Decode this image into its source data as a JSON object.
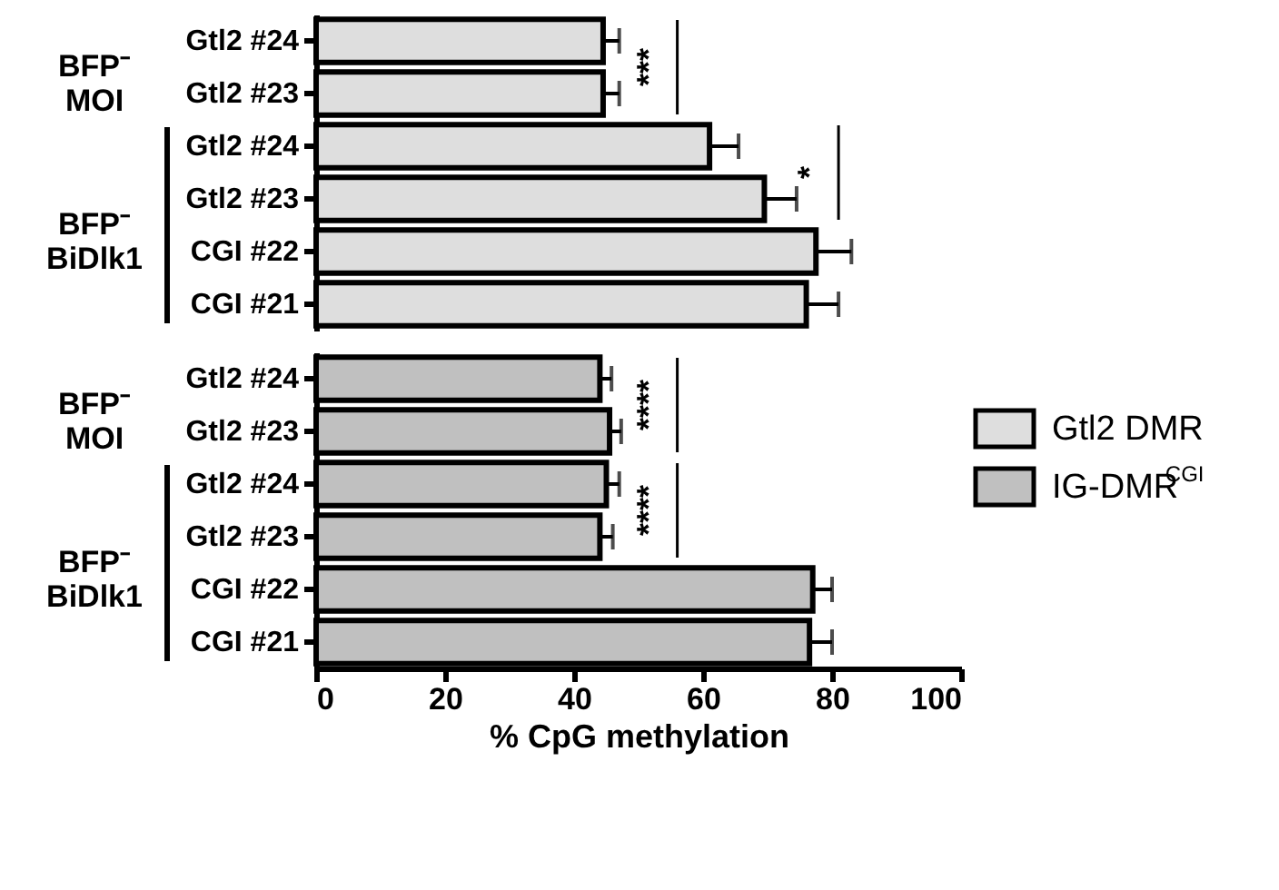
{
  "chart_data": [
    {
      "type": "bar",
      "orientation": "horizontal",
      "categories": [
        "Gtl2 #24",
        "Gtl2 #23",
        "Gtl2 #24",
        "Gtl2 #23",
        "CGI #22",
        "CGI #21"
      ],
      "series": [
        {
          "name": "Gtl2 DMR",
          "color": "#dedede",
          "values": [
            44.5,
            44.5,
            61,
            69.5,
            77.5,
            76
          ],
          "errors": [
            2.5,
            2.5,
            4.5,
            5,
            5.5,
            5
          ]
        }
      ],
      "xlim": [
        0,
        100
      ],
      "tick_labels": "y",
      "legend": "right",
      "annotations": [
        "BFP⁻\nMOI",
        "BFP⁻\nBiDlk1",
        "***",
        "*"
      ]
    },
    {
      "type": "bar",
      "orientation": "horizontal",
      "categories": [
        "Gtl2 #24",
        "Gtl2 #23",
        "Gtl2 #24",
        "Gtl2 #23",
        "CGI #22",
        "CGI #21"
      ],
      "series": [
        {
          "name": "IG-DMR$^{CGI}$",
          "color": "#c0c0c0",
          "values": [
            44,
            45.5,
            45,
            44,
            77,
            76.5
          ],
          "errors": [
            1.8,
            1.8,
            2,
            2,
            3,
            3.5
          ]
        }
      ],
      "xlim": [
        0,
        100
      ],
      "xticks": [
        0,
        20,
        40,
        60,
        80,
        100
      ],
      "xlabel": "% CpG methylation",
      "legend": "right",
      "annotations": [
        "BFP⁻\nMOI",
        "BFP⁻\nBiDlk1",
        "****",
        "****"
      ]
    }
  ]
}
